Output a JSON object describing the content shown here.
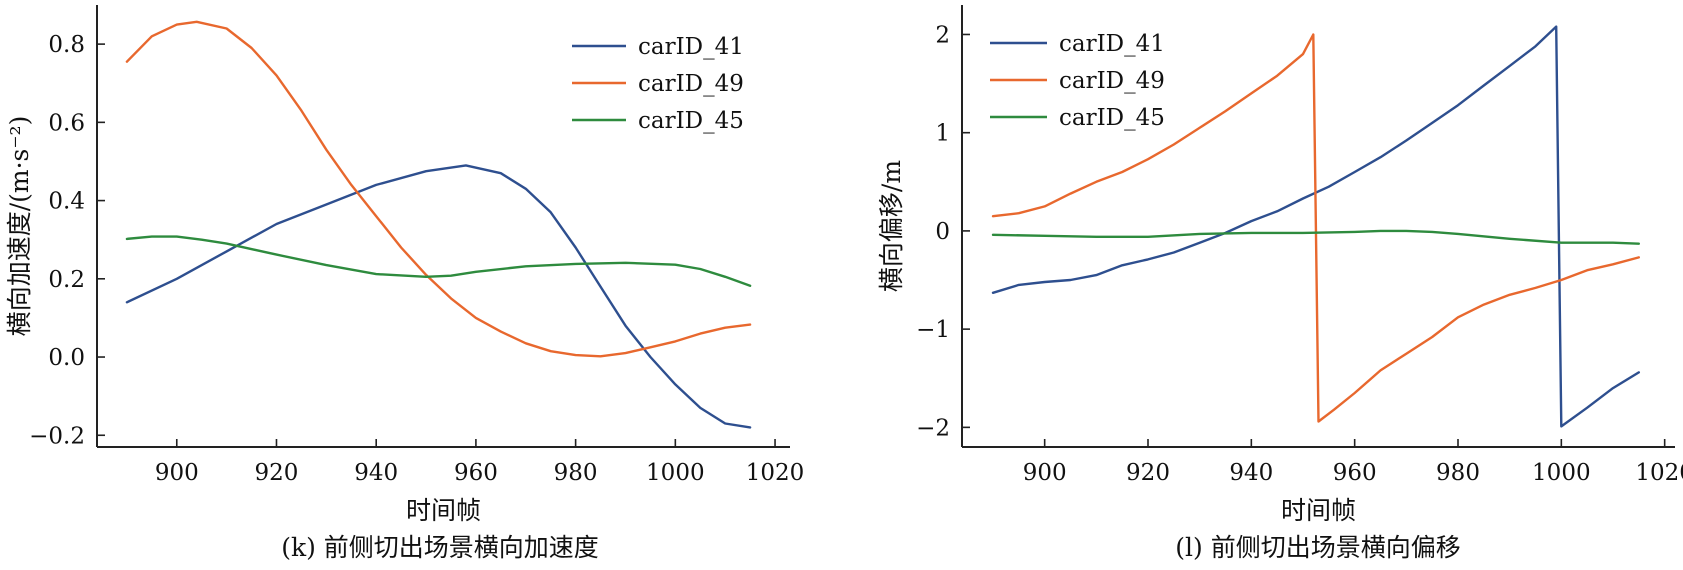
{
  "figure": {
    "panels": [
      {
        "caption": "(k) 前侧切出场景横向加速度"
      },
      {
        "caption": "(l) 前侧切出场景横向偏移"
      }
    ]
  },
  "chart_data": [
    {
      "type": "line",
      "title": "",
      "xlabel": "时间帧",
      "ylabel": "横向加速度/(m·s⁻²)",
      "xlim": [
        884,
        1023
      ],
      "ylim": [
        -0.23,
        0.9
      ],
      "xticks": [
        900,
        920,
        940,
        960,
        980,
        1000,
        1020
      ],
      "yticks": [
        -0.2,
        0.0,
        0.2,
        0.4,
        0.6,
        0.8
      ],
      "ytick_labels": [
        "−0.2",
        "0.0",
        "0.2",
        "0.4",
        "0.6",
        "0.8"
      ],
      "grid": false,
      "legend_position": "top-right",
      "series": [
        {
          "name": "carID_41",
          "color": "#2e4f8f",
          "points": [
            [
              890,
              0.14
            ],
            [
              900,
              0.2
            ],
            [
              910,
              0.27
            ],
            [
              920,
              0.34
            ],
            [
              930,
              0.39
            ],
            [
              940,
              0.44
            ],
            [
              950,
              0.475
            ],
            [
              958,
              0.49
            ],
            [
              965,
              0.47
            ],
            [
              970,
              0.43
            ],
            [
              975,
              0.37
            ],
            [
              980,
              0.28
            ],
            [
              985,
              0.18
            ],
            [
              990,
              0.08
            ],
            [
              995,
              0.0
            ],
            [
              1000,
              -0.07
            ],
            [
              1005,
              -0.13
            ],
            [
              1010,
              -0.17
            ],
            [
              1015,
              -0.18
            ]
          ]
        },
        {
          "name": "carID_49",
          "color": "#e8682e",
          "points": [
            [
              890,
              0.755
            ],
            [
              895,
              0.82
            ],
            [
              900,
              0.85
            ],
            [
              904,
              0.857
            ],
            [
              910,
              0.84
            ],
            [
              915,
              0.79
            ],
            [
              920,
              0.72
            ],
            [
              925,
              0.63
            ],
            [
              930,
              0.53
            ],
            [
              935,
              0.44
            ],
            [
              940,
              0.36
            ],
            [
              945,
              0.28
            ],
            [
              950,
              0.21
            ],
            [
              955,
              0.15
            ],
            [
              960,
              0.1
            ],
            [
              965,
              0.065
            ],
            [
              970,
              0.035
            ],
            [
              975,
              0.015
            ],
            [
              980,
              0.005
            ],
            [
              985,
              0.002
            ],
            [
              990,
              0.01
            ],
            [
              995,
              0.025
            ],
            [
              1000,
              0.04
            ],
            [
              1005,
              0.06
            ],
            [
              1010,
              0.075
            ],
            [
              1015,
              0.083
            ]
          ]
        },
        {
          "name": "carID_45",
          "color": "#2e8b3e",
          "points": [
            [
              890,
              0.302
            ],
            [
              895,
              0.308
            ],
            [
              900,
              0.308
            ],
            [
              905,
              0.3
            ],
            [
              910,
              0.29
            ],
            [
              920,
              0.262
            ],
            [
              930,
              0.235
            ],
            [
              940,
              0.212
            ],
            [
              950,
              0.205
            ],
            [
              955,
              0.208
            ],
            [
              960,
              0.218
            ],
            [
              970,
              0.232
            ],
            [
              980,
              0.238
            ],
            [
              990,
              0.241
            ],
            [
              1000,
              0.236
            ],
            [
              1005,
              0.225
            ],
            [
              1010,
              0.205
            ],
            [
              1015,
              0.182
            ]
          ]
        }
      ]
    },
    {
      "type": "line",
      "title": "",
      "xlabel": "时间帧",
      "ylabel": "横向偏移/m",
      "xlim": [
        884,
        1022
      ],
      "ylim": [
        -2.2,
        2.3
      ],
      "xticks": [
        900,
        920,
        940,
        960,
        980,
        1000,
        1020
      ],
      "yticks": [
        -2,
        -1,
        0,
        1,
        2
      ],
      "ytick_labels": [
        "−2",
        "−1",
        "0",
        "1",
        "2"
      ],
      "grid": false,
      "legend_position": "top-left",
      "series": [
        {
          "name": "carID_41",
          "color": "#2e4f8f",
          "points": [
            [
              890,
              -0.63
            ],
            [
              895,
              -0.55
            ],
            [
              900,
              -0.52
            ],
            [
              905,
              -0.5
            ],
            [
              910,
              -0.45
            ],
            [
              915,
              -0.35
            ],
            [
              920,
              -0.29
            ],
            [
              925,
              -0.22
            ],
            [
              930,
              -0.12
            ],
            [
              935,
              -0.02
            ],
            [
              940,
              0.1
            ],
            [
              945,
              0.2
            ],
            [
              950,
              0.33
            ],
            [
              955,
              0.45
            ],
            [
              960,
              0.6
            ],
            [
              965,
              0.75
            ],
            [
              970,
              0.92
            ],
            [
              975,
              1.1
            ],
            [
              980,
              1.28
            ],
            [
              985,
              1.48
            ],
            [
              990,
              1.68
            ],
            [
              995,
              1.88
            ],
            [
              999,
              2.08
            ],
            [
              1000,
              -1.99
            ],
            [
              1005,
              -1.8
            ],
            [
              1010,
              -1.6
            ],
            [
              1015,
              -1.44
            ]
          ]
        },
        {
          "name": "carID_49",
          "color": "#e8682e",
          "points": [
            [
              890,
              0.15
            ],
            [
              895,
              0.18
            ],
            [
              900,
              0.25
            ],
            [
              905,
              0.38
            ],
            [
              910,
              0.5
            ],
            [
              915,
              0.6
            ],
            [
              920,
              0.73
            ],
            [
              925,
              0.88
            ],
            [
              930,
              1.05
            ],
            [
              935,
              1.22
            ],
            [
              940,
              1.4
            ],
            [
              945,
              1.58
            ],
            [
              950,
              1.8
            ],
            [
              952,
              2.0
            ],
            [
              953,
              -1.94
            ],
            [
              956,
              -1.82
            ],
            [
              960,
              -1.65
            ],
            [
              965,
              -1.42
            ],
            [
              970,
              -1.25
            ],
            [
              975,
              -1.08
            ],
            [
              980,
              -0.88
            ],
            [
              985,
              -0.75
            ],
            [
              990,
              -0.65
            ],
            [
              995,
              -0.58
            ],
            [
              1000,
              -0.5
            ],
            [
              1005,
              -0.4
            ],
            [
              1010,
              -0.34
            ],
            [
              1015,
              -0.27
            ]
          ]
        },
        {
          "name": "carID_45",
          "color": "#2e8b3e",
          "points": [
            [
              890,
              -0.04
            ],
            [
              900,
              -0.05
            ],
            [
              910,
              -0.06
            ],
            [
              920,
              -0.06
            ],
            [
              930,
              -0.03
            ],
            [
              940,
              -0.02
            ],
            [
              950,
              -0.02
            ],
            [
              960,
              -0.01
            ],
            [
              965,
              0.0
            ],
            [
              970,
              0.0
            ],
            [
              975,
              -0.01
            ],
            [
              980,
              -0.03
            ],
            [
              990,
              -0.08
            ],
            [
              1000,
              -0.12
            ],
            [
              1010,
              -0.12
            ],
            [
              1015,
              -0.13
            ]
          ]
        }
      ]
    }
  ]
}
